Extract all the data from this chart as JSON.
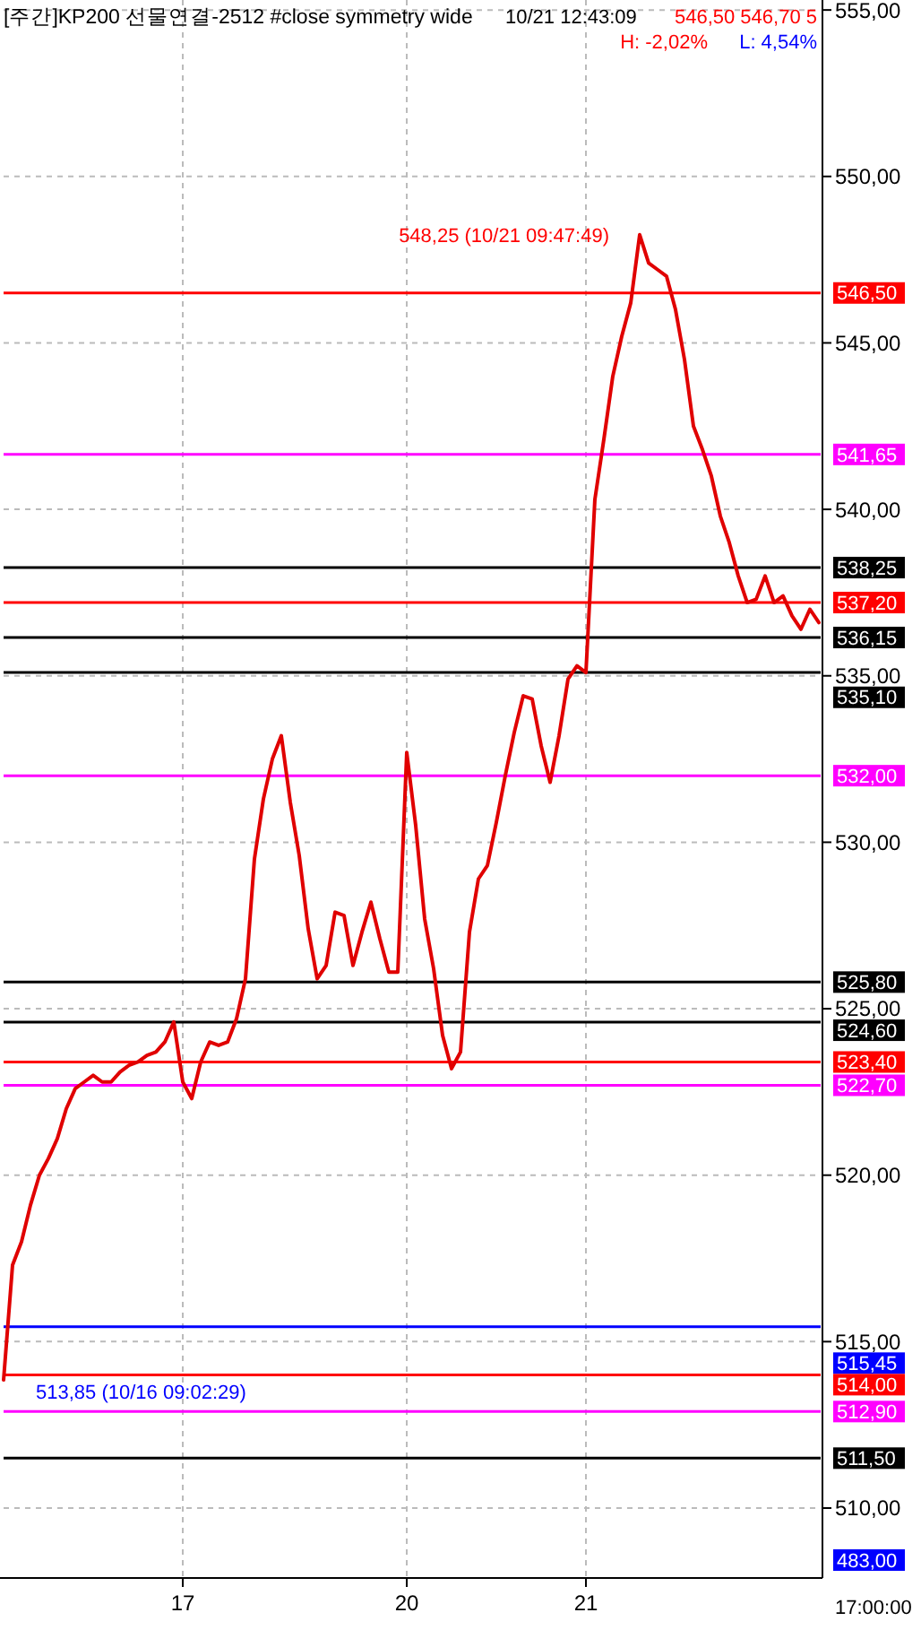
{
  "chart_data": {
    "type": "line",
    "title": "[주간]KP200 선물연결-2512 #close symmetry wide",
    "annotations": [
      "10/21 12:43:09",
      "546,50 546,70 5",
      "H: -2,02%",
      "L: 4,54%",
      "483,00",
      "17:00:00",
      "548,25 (10/21 09:47:49)",
      "513,85 (10/16 09:02:29)"
    ],
    "categories": [
      null,
      null,
      null,
      null,
      null,
      null,
      null,
      null,
      null,
      null,
      null,
      null,
      null,
      null,
      null,
      null,
      null,
      null,
      null,
      null,
      "17",
      null,
      null,
      null,
      null,
      null,
      null,
      null,
      null,
      null,
      null,
      null,
      null,
      null,
      null,
      null,
      null,
      null,
      null,
      null,
      null,
      null,
      null,
      null,
      null,
      "20",
      null,
      null,
      null,
      null,
      null,
      null,
      null,
      null,
      null,
      null,
      null,
      null,
      null,
      null,
      null,
      null,
      null,
      null,
      null,
      "21",
      null,
      null,
      null,
      null,
      null,
      null,
      null,
      null,
      null,
      null,
      null,
      null,
      null,
      null,
      null,
      null,
      null,
      null,
      null,
      null,
      null,
      null,
      null,
      null,
      null,
      null
    ],
    "ylim": [
      507.9,
      555.3
    ],
    "yticks": [
      {
        "value": 510,
        "label": "510,00"
      },
      {
        "value": 515,
        "label": "515,00"
      },
      {
        "value": 520,
        "label": "520,00"
      },
      {
        "value": 525,
        "label": "525,00"
      },
      {
        "value": 530,
        "label": "530,00"
      },
      {
        "value": 535,
        "label": "535,00"
      },
      {
        "value": 540,
        "label": "540,00"
      },
      {
        "value": 545,
        "label": "545,00"
      },
      {
        "value": 550,
        "label": "550,00"
      },
      {
        "value": 555,
        "label": "555,00"
      }
    ],
    "grid": true,
    "line_style": "solid",
    "marker": "none",
    "series": [
      {
        "color": "#e00000",
        "values": [
          513.85,
          517.3,
          518.0,
          519.1,
          520.0,
          520.5,
          521.1,
          522.0,
          522.6,
          522.8,
          523.0,
          522.8,
          522.8,
          523.1,
          523.3,
          523.4,
          523.6,
          523.7,
          524.0,
          524.6,
          522.8,
          522.3,
          523.4,
          524.0,
          523.9,
          524.0,
          524.7,
          525.9,
          529.5,
          531.3,
          532.5,
          533.2,
          531.2,
          529.6,
          527.4,
          525.9,
          526.3,
          527.9,
          527.8,
          526.3,
          527.3,
          528.2,
          527.1,
          526.1,
          526.1,
          532.7,
          530.5,
          527.7,
          526.2,
          524.2,
          523.2,
          523.7,
          527.3,
          528.9,
          529.3,
          530.6,
          532.0,
          533.3,
          534.4,
          534.3,
          532.9,
          531.8,
          533.2,
          534.9,
          535.3,
          535.1,
          540.3,
          542.1,
          544.0,
          545.2,
          546.2,
          548.25,
          547.4,
          547.2,
          547.0,
          546.0,
          544.5,
          542.5,
          541.8,
          541.0,
          539.8,
          539.0,
          538.0,
          537.2,
          537.3,
          538.0,
          537.2,
          537.4,
          536.8,
          536.4,
          537.0,
          536.6
        ]
      }
    ],
    "ref_lines": [
      {
        "axis": "y",
        "value": 546.5,
        "label": "546,50",
        "color": "#ff0000"
      },
      {
        "axis": "y",
        "value": 541.65,
        "label": "541,65",
        "color": "#ff00ff"
      },
      {
        "axis": "y",
        "value": 538.25,
        "label": "538,25",
        "color": "#000000"
      },
      {
        "axis": "y",
        "value": 537.2,
        "label": "537,20",
        "color": "#ff0000"
      },
      {
        "axis": "y",
        "value": 536.15,
        "label": "536,15",
        "color": "#000000"
      },
      {
        "axis": "y",
        "value": 535.1,
        "label": "535,10",
        "color": "#000000"
      },
      {
        "axis": "y",
        "value": 532.0,
        "label": "532,00",
        "color": "#ff00ff"
      },
      {
        "axis": "y",
        "value": 525.8,
        "label": "525,80",
        "color": "#000000"
      },
      {
        "axis": "y",
        "value": 524.6,
        "label": "524,60",
        "color": "#000000"
      },
      {
        "axis": "y",
        "value": 523.4,
        "label": "523,40",
        "color": "#ff0000"
      },
      {
        "axis": "y",
        "value": 522.7,
        "label": "522,70",
        "color": "#ff00ff"
      },
      {
        "axis": "y",
        "value": 515.45,
        "label": "515,45",
        "color": "#0000ff"
      },
      {
        "axis": "y",
        "value": 514.0,
        "label": "514,00",
        "color": "#ff0000"
      },
      {
        "axis": "y",
        "value": 512.9,
        "label": "512,90",
        "color": "#ff00ff"
      },
      {
        "axis": "y",
        "value": 511.5,
        "label": "511,50",
        "color": "#000000"
      }
    ]
  }
}
